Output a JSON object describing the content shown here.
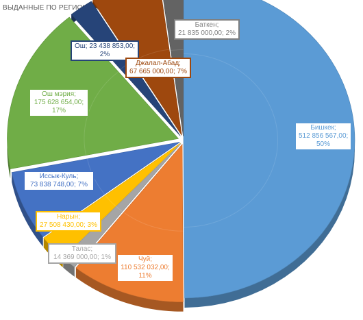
{
  "chart_data": {
    "type": "pie",
    "title": "ВЫДАННЫЕ ПО РЕГИОНАМ",
    "style": "3d-exploded",
    "slices": [
      {
        "name": "Бишкек",
        "value": "512 856 567,00",
        "percent": "50%",
        "numeric": 512856567,
        "color": "#5b9bd5"
      },
      {
        "name": "Чуй",
        "value": "110 532 032,00",
        "percent": "11%",
        "numeric": 110532032,
        "color": "#ed7d31"
      },
      {
        "name": "Талас",
        "value": "14 369 000,00",
        "percent": "1%",
        "numeric": 14369000,
        "color": "#a5a5a5"
      },
      {
        "name": "Нарын",
        "value": "27 508 430,00",
        "percent": "3%",
        "numeric": 27508430,
        "color": "#ffc000"
      },
      {
        "name": "Иссык-Куль",
        "value": "73 838 748,00",
        "percent": "7%",
        "numeric": 73838748,
        "color": "#4472c4"
      },
      {
        "name": "Ош мэрия",
        "value": "175 628 654,00",
        "percent": "17%",
        "numeric": 175628654,
        "color": "#70ad47"
      },
      {
        "name": "Ош",
        "value": "23 438 853,00",
        "percent": "2%",
        "numeric": 23438853,
        "color": "#264478"
      },
      {
        "name": "Джалал-Абад",
        "value": "67 665 000,00",
        "percent": "7%",
        "numeric": 67665000,
        "color": "#9e480e"
      },
      {
        "name": "Баткен",
        "value": "21 835 000,00",
        "percent": "2%",
        "numeric": 21835000,
        "color": "#636363"
      }
    ]
  },
  "labels": {
    "bishkek": {
      "l1": "Бишкек;",
      "l2": "512 856 567,00;",
      "l3": "50%"
    },
    "chui": {
      "l1": "Чуй;",
      "l2": "110 532 032,00;",
      "l3": "11%"
    },
    "talas": {
      "l1": "Талас;",
      "l2": "14 369 000,00; 1%"
    },
    "naryn": {
      "l1": "Нарын;",
      "l2": "27 508 430,00; 3%"
    },
    "issyk": {
      "l1": "Иссык-Куль;",
      "l2": "73 838 748,00; 7%"
    },
    "oshm": {
      "l1": "Ош мэрия;",
      "l2": "175 628 654,00;",
      "l3": "17%"
    },
    "osh": {
      "l1": "Ош; 23 438 853,00;",
      "l2": "2%"
    },
    "jalal": {
      "l1": "Джалал-Абад;",
      "l2": "67 665 000,00; 7%"
    },
    "batken": {
      "l1": "Баткен;",
      "l2": "21 835 000,00; 2%"
    }
  }
}
